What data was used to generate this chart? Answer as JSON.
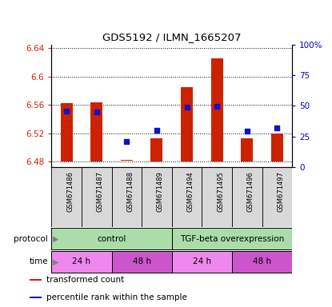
{
  "title": "GDS5192 / ILMN_1665207",
  "samples": [
    "GSM671486",
    "GSM671487",
    "GSM671488",
    "GSM671489",
    "GSM671494",
    "GSM671495",
    "GSM671496",
    "GSM671497"
  ],
  "bar_bottoms": [
    6.48,
    6.48,
    6.481,
    6.48,
    6.48,
    6.48,
    6.48,
    6.48
  ],
  "bar_tops": [
    6.562,
    6.563,
    6.483,
    6.513,
    6.585,
    6.625,
    6.513,
    6.52
  ],
  "blue_y": [
    6.551,
    6.55,
    6.508,
    6.524,
    6.557,
    6.558,
    6.523,
    6.528
  ],
  "ylim_min": 6.472,
  "ylim_max": 6.645,
  "yticks_left": [
    6.48,
    6.52,
    6.56,
    6.6,
    6.64
  ],
  "yticks_right_vals": [
    0,
    25,
    50,
    75,
    100
  ],
  "yticks_right_labels": [
    "0",
    "25",
    "50",
    "75",
    "100%"
  ],
  "bar_color": "#cc2200",
  "blue_color": "#1111cc",
  "proto_def": [
    {
      "label": "control",
      "xstart": -0.5,
      "xend": 3.5,
      "color": "#aaddaa"
    },
    {
      "label": "TGF-beta overexpression",
      "xstart": 3.5,
      "xend": 7.5,
      "color": "#aaddaa"
    }
  ],
  "time_def": [
    {
      "label": "24 h",
      "xstart": -0.5,
      "xend": 1.5,
      "color": "#ee88ee"
    },
    {
      "label": "48 h",
      "xstart": 1.5,
      "xend": 3.5,
      "color": "#cc55cc"
    },
    {
      "label": "24 h",
      "xstart": 3.5,
      "xend": 5.5,
      "color": "#ee88ee"
    },
    {
      "label": "48 h",
      "xstart": 5.5,
      "xend": 7.5,
      "color": "#cc55cc"
    }
  ],
  "legend_items": [
    {
      "label": "transformed count",
      "color": "#cc2200",
      "marker": "s"
    },
    {
      "label": "percentile rank within the sample",
      "color": "#1111cc",
      "marker": "s"
    }
  ],
  "n": 8
}
